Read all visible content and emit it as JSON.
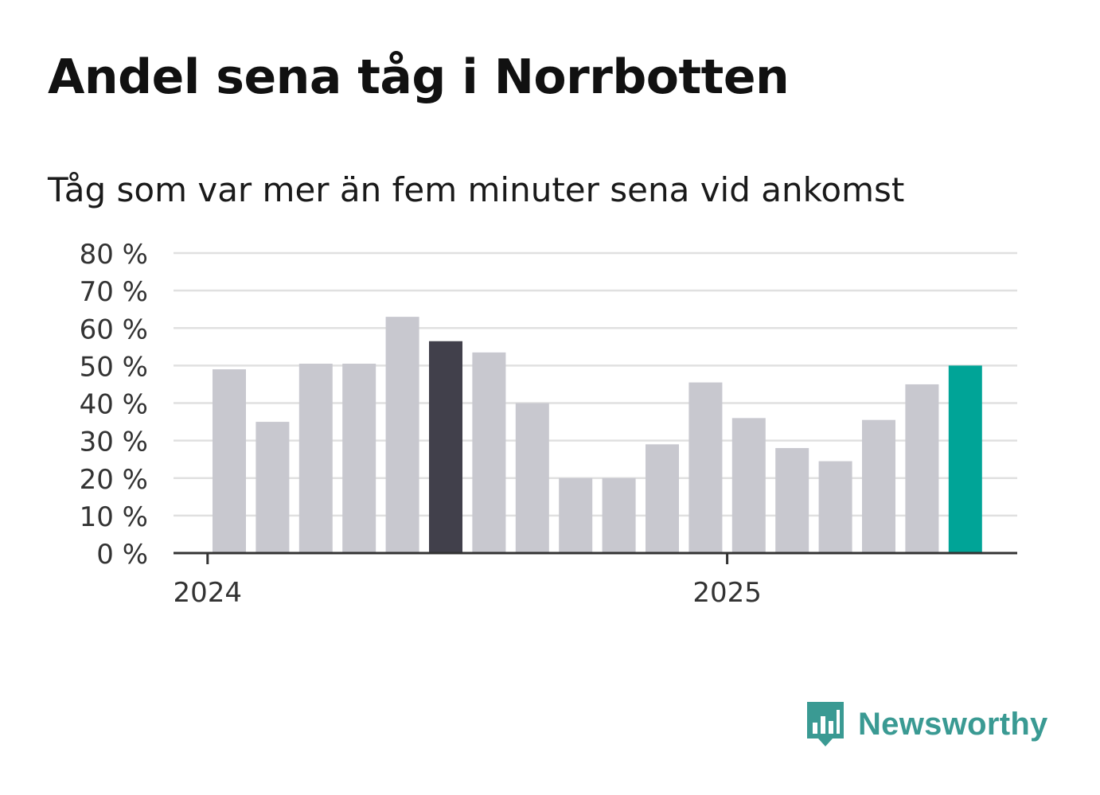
{
  "title": "Andel sena tåg i Norrbotten",
  "subtitle": "Tåg som var mer än fem minuter sena vid ankomst",
  "logo": {
    "text": "Newsworthy",
    "icon": "bar-chart-speech-bubble-icon"
  },
  "colors": {
    "default_bar": "#c8c8cf",
    "highlight_dark": "#41404b",
    "highlight_accent": "#00a497",
    "gridline": "#e0e0e0",
    "axis": "#333333",
    "brand": "#3a9a93"
  },
  "chart_data": {
    "type": "bar",
    "title": "Andel sena tåg i Norrbotten",
    "subtitle": "Tåg som var mer än fem minuter sena vid ankomst",
    "xlabel": "",
    "ylabel": "",
    "x_tick_labels": [
      {
        "label": "2024",
        "position_index": -0.5
      },
      {
        "label": "2025",
        "position_index": 11.5
      }
    ],
    "y_ticks": [
      0,
      10,
      20,
      30,
      40,
      50,
      60,
      70,
      80
    ],
    "y_tick_suffix": " %",
    "ylim": [
      0,
      80
    ],
    "grid": true,
    "values": [
      49,
      35,
      50.5,
      50.5,
      63,
      56.5,
      53.5,
      40,
      20,
      20,
      29,
      45.5,
      36,
      28,
      24.5,
      35.5,
      45,
      50
    ],
    "highlight": [
      {
        "index": 5,
        "color": "highlight_dark"
      },
      {
        "index": 17,
        "color": "highlight_accent"
      }
    ]
  }
}
